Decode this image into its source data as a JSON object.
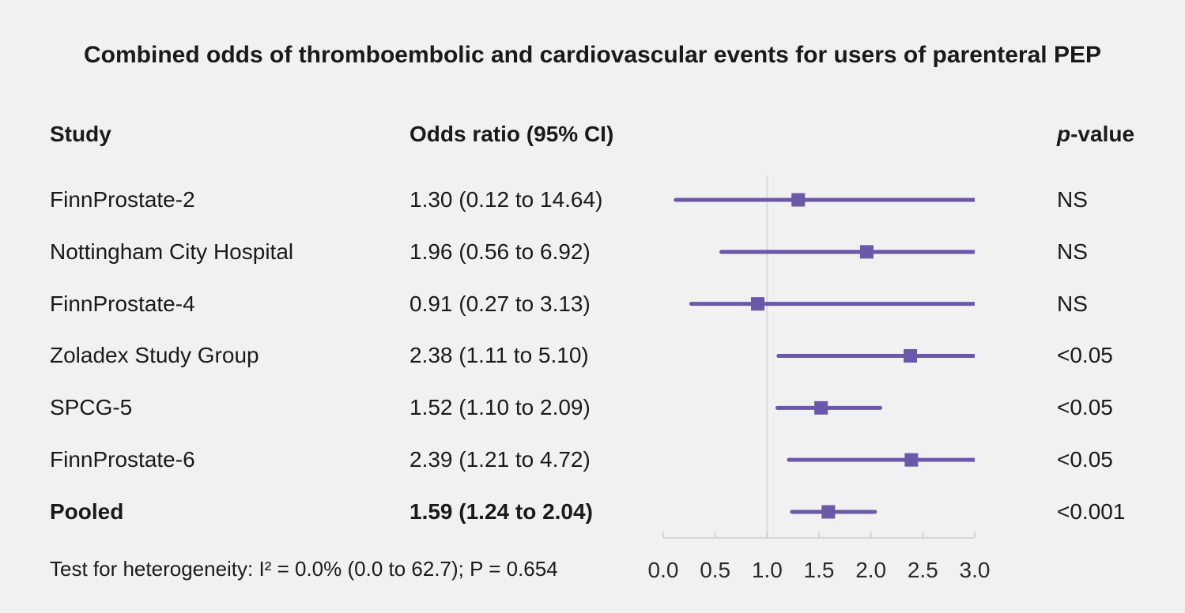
{
  "title": "Combined odds of thromboembolic and cardiovascular events for users of parenteral PEP",
  "header": {
    "study": "Study",
    "odds_ratio": "Odds ratio (95% CI)",
    "p_italic": "p",
    "p_rest": "-value"
  },
  "footer": "Test for heterogeneity: I² = 0.0% (0.0 to 62.7); P = 0.654",
  "colors": {
    "accent": "#6b58a8",
    "reference_line": "#d9dce2",
    "axis": "#c9cdd3",
    "tick_label": "#2b2b2b",
    "background": "#f2f1f1",
    "text": "#1a1a1a"
  },
  "chart_data": {
    "type": "forest",
    "title": "Combined odds of thromboembolic and cardiovascular events for users of parenteral PEP",
    "xlabel": "Odds ratio",
    "xlim": [
      0,
      3
    ],
    "x_ticks": [
      0.0,
      0.5,
      1.0,
      1.5,
      2.0,
      2.5,
      3.0
    ],
    "reference_line": 1.0,
    "grid": false,
    "rows": [
      {
        "study": "FinnProstate-2",
        "or_ci": "1.30 (0.12 to 14.64)",
        "or": 1.3,
        "ci_low": 0.12,
        "ci_high": 14.64,
        "p_value": "NS",
        "bold": false
      },
      {
        "study": "Nottingham City Hospital",
        "or_ci": "1.96 (0.56 to 6.92)",
        "or": 1.96,
        "ci_low": 0.56,
        "ci_high": 6.92,
        "p_value": "NS",
        "bold": false
      },
      {
        "study": "FinnProstate-4",
        "or_ci": "0.91 (0.27 to 3.13)",
        "or": 0.91,
        "ci_low": 0.27,
        "ci_high": 3.13,
        "p_value": "NS",
        "bold": false
      },
      {
        "study": "Zoladex Study Group",
        "or_ci": "2.38 (1.11 to 5.10)",
        "or": 2.38,
        "ci_low": 1.11,
        "ci_high": 5.1,
        "p_value": "<0.05",
        "bold": false
      },
      {
        "study": "SPCG-5",
        "or_ci": "1.52 (1.10 to 2.09)",
        "or": 1.52,
        "ci_low": 1.1,
        "ci_high": 2.09,
        "p_value": "<0.05",
        "bold": false
      },
      {
        "study": "FinnProstate-6",
        "or_ci": "2.39 (1.21 to 4.72)",
        "or": 2.39,
        "ci_low": 1.21,
        "ci_high": 4.72,
        "p_value": "<0.05",
        "bold": false
      },
      {
        "study": "Pooled",
        "or_ci": "1.59 (1.24 to 2.04)",
        "or": 1.59,
        "ci_low": 1.24,
        "ci_high": 2.04,
        "p_value": "<0.001",
        "bold": true
      }
    ]
  }
}
